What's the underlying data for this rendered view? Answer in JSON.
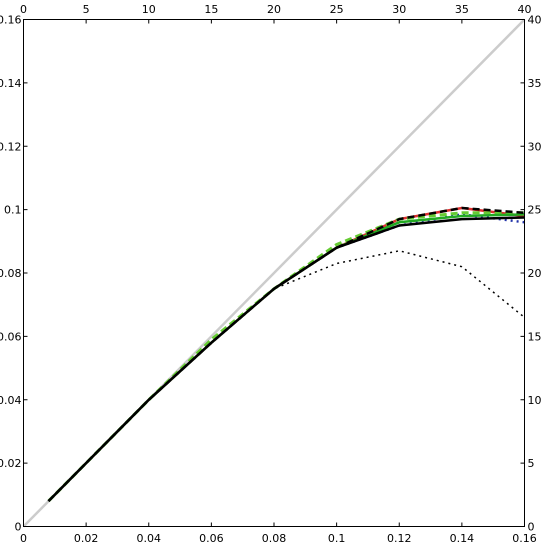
{
  "chart_data": {
    "type": "line",
    "title": "",
    "xlabel": "",
    "ylabel": "",
    "xlim": [
      0,
      0.16
    ],
    "ylim": [
      0,
      0.16
    ],
    "x2lim": [
      0,
      40
    ],
    "y2lim": [
      0,
      40
    ],
    "grid": false,
    "x_ticks": [
      0,
      0.02,
      0.04,
      0.06,
      0.08,
      0.1,
      0.12,
      0.14,
      0.16
    ],
    "x_tick_labels": [
      "0",
      "0.02",
      "0.04",
      "0.06",
      "0.08",
      "0.1",
      "0.12",
      "0.14",
      "0.16"
    ],
    "y_ticks": [
      0,
      0.02,
      0.04,
      0.06,
      0.08,
      0.1,
      0.12,
      0.14,
      0.16
    ],
    "y_tick_labels": [
      "0",
      "0.02",
      "0.04",
      "0.06",
      "0.08",
      "0.1",
      "0.12",
      "0.14",
      "0.16"
    ],
    "x2_ticks": [
      0,
      5,
      10,
      15,
      20,
      25,
      30,
      35,
      40
    ],
    "x2_tick_labels": [
      "0",
      "5",
      "10",
      "15",
      "20",
      "25",
      "30",
      "35",
      "40"
    ],
    "y2_ticks": [
      0,
      5,
      10,
      15,
      20,
      25,
      30,
      35,
      40
    ],
    "y2_tick_labels": [
      "0",
      "5",
      "10",
      "15",
      "20",
      "25",
      "30",
      "35",
      "40"
    ],
    "series": [
      {
        "color": "#cccccc",
        "dash": "solid",
        "width": 2.5,
        "x": [
          0,
          0.16
        ],
        "y": [
          0,
          0.16
        ]
      },
      {
        "color": "#000000",
        "dash": "dotted",
        "width": 1.5,
        "x": [
          0.008,
          0.02,
          0.04,
          0.06,
          0.08,
          0.1,
          0.12,
          0.14,
          0.16
        ],
        "y": [
          0.008,
          0.02,
          0.04,
          0.058,
          0.075,
          0.083,
          0.087,
          0.082,
          0.066
        ]
      },
      {
        "color": "#e03030",
        "dash": "solid",
        "width": 2.5,
        "x": [
          0.008,
          0.02,
          0.04,
          0.06,
          0.08,
          0.1,
          0.12,
          0.14,
          0.16
        ],
        "y": [
          0.008,
          0.02,
          0.04,
          0.058,
          0.075,
          0.088,
          0.097,
          0.1005,
          0.098
        ]
      },
      {
        "color": "#2233aa",
        "dash": "dotted",
        "width": 2.5,
        "x": [
          0.008,
          0.02,
          0.04,
          0.06,
          0.08,
          0.1,
          0.12,
          0.14,
          0.16
        ],
        "y": [
          0.008,
          0.02,
          0.04,
          0.058,
          0.075,
          0.088,
          0.095,
          0.0985,
          0.096
        ]
      },
      {
        "color": "#66cc33",
        "dash": "dashed",
        "width": 3,
        "x": [
          0.008,
          0.02,
          0.04,
          0.06,
          0.08,
          0.1,
          0.12,
          0.14,
          0.16
        ],
        "y": [
          0.008,
          0.02,
          0.04,
          0.059,
          0.075,
          0.089,
          0.097,
          0.099,
          0.099
        ]
      },
      {
        "color": "#22aa22",
        "dash": "solid",
        "width": 2.5,
        "x": [
          0.008,
          0.02,
          0.04,
          0.06,
          0.08,
          0.1,
          0.12,
          0.14,
          0.16
        ],
        "y": [
          0.008,
          0.02,
          0.04,
          0.058,
          0.075,
          0.088,
          0.096,
          0.098,
          0.0985
        ]
      },
      {
        "color": "#000000",
        "dash": "dashed",
        "width": 2.5,
        "x": [
          0.008,
          0.02,
          0.04,
          0.06,
          0.08,
          0.1,
          0.12,
          0.14,
          0.16
        ],
        "y": [
          0.008,
          0.02,
          0.04,
          0.058,
          0.075,
          0.088,
          0.097,
          0.1005,
          0.099
        ]
      },
      {
        "color": "#000000",
        "dash": "solid",
        "width": 2.5,
        "x": [
          0.008,
          0.02,
          0.04,
          0.06,
          0.08,
          0.1,
          0.12,
          0.14,
          0.16
        ],
        "y": [
          0.008,
          0.02,
          0.04,
          0.058,
          0.075,
          0.088,
          0.095,
          0.097,
          0.0975
        ]
      }
    ]
  }
}
